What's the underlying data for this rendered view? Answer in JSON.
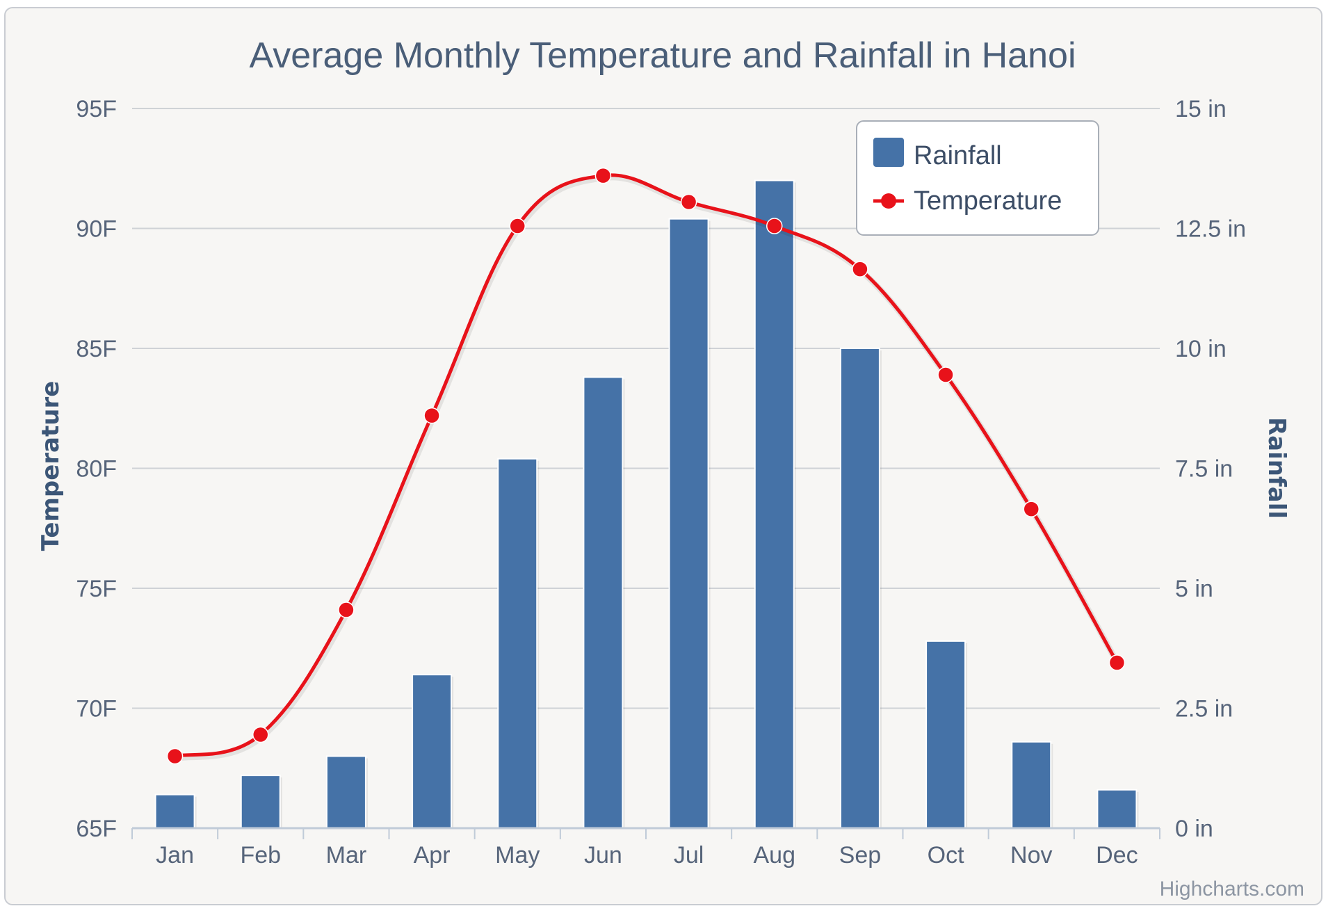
{
  "chart_data": {
    "type": "bar+line",
    "title": "Average Monthly Temperature and Rainfall in Hanoi",
    "categories": [
      "Jan",
      "Feb",
      "Mar",
      "Apr",
      "May",
      "Jun",
      "Jul",
      "Aug",
      "Sep",
      "Oct",
      "Nov",
      "Dec"
    ],
    "series": [
      {
        "name": "Rainfall",
        "type": "bar",
        "axis": "right",
        "color": "#4572a7",
        "values": [
          0.7,
          1.1,
          1.5,
          3.2,
          7.7,
          9.4,
          12.7,
          13.5,
          10.0,
          3.9,
          1.8,
          0.8
        ]
      },
      {
        "name": "Temperature",
        "type": "line",
        "axis": "left",
        "color": "#e8121a",
        "values": [
          68.0,
          68.9,
          74.1,
          82.2,
          90.1,
          92.2,
          91.1,
          90.1,
          88.3,
          83.9,
          78.3,
          71.9
        ]
      }
    ],
    "y_left": {
      "title": "Temperature",
      "range": [
        65,
        95
      ],
      "ticks": [
        65,
        70,
        75,
        80,
        85,
        90,
        95
      ],
      "tick_labels": [
        "65F",
        "70F",
        "75F",
        "80F",
        "85F",
        "90F",
        "95F"
      ]
    },
    "y_right": {
      "title": "Rainfall",
      "range": [
        0,
        15
      ],
      "ticks": [
        0,
        2.5,
        5,
        7.5,
        10,
        12.5,
        15
      ],
      "tick_labels": [
        "0 in",
        "2.5 in",
        "5 in",
        "7.5 in",
        "10 in",
        "12.5 in",
        "15 in"
      ]
    },
    "legend": {
      "placement": "top-right",
      "items": [
        "Rainfall",
        "Temperature"
      ]
    },
    "grid": true
  },
  "credit": "Highcharts.com",
  "colors": {
    "background": "#f7f6f4",
    "gridline": "#cfd2d6",
    "bar": "#4572a7",
    "line": "#e8121a",
    "text": "#4a5e78"
  }
}
